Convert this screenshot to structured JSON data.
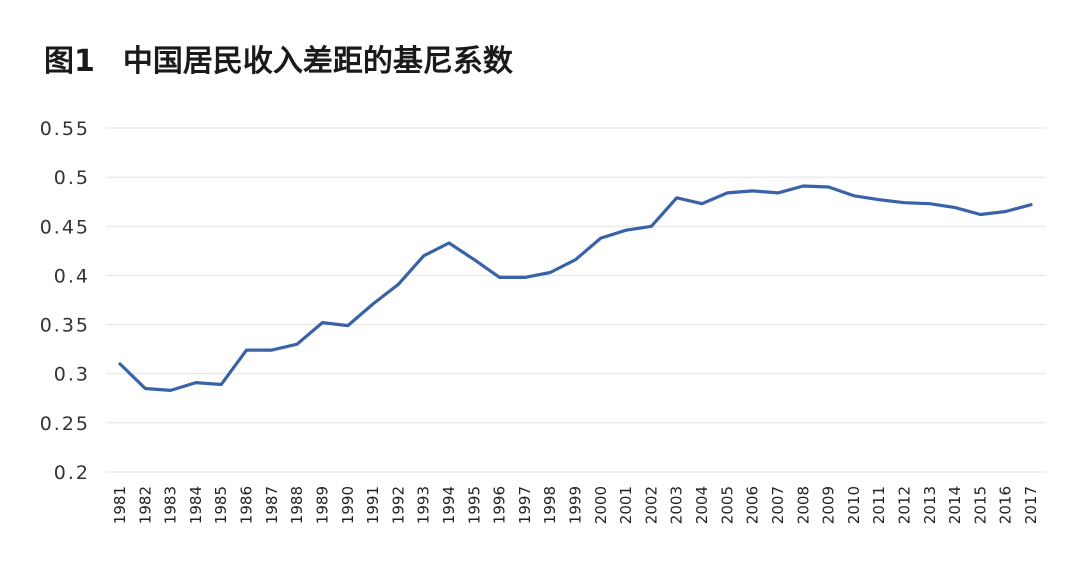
{
  "figure": {
    "label": "图1",
    "title": "中国居民收入差距的基尼系数"
  },
  "chart_data": {
    "type": "line",
    "title": "中国居民收入差距的基尼系数",
    "xlabel": "",
    "ylabel": "",
    "ylim": [
      0.2,
      0.55
    ],
    "yticks": [
      "0.55",
      "0.5",
      "0.45",
      "0.4",
      "0.35",
      "0.3",
      "0.25",
      "0.2"
    ],
    "grid": true,
    "legend": "none",
    "line_color": "#3a62a8",
    "categories": [
      "1981",
      "1982",
      "1983",
      "1984",
      "1985",
      "1986",
      "1987",
      "1988",
      "1989",
      "1990",
      "1991",
      "1992",
      "1993",
      "1994",
      "1995",
      "1996",
      "1997",
      "1998",
      "1999",
      "2000",
      "2001",
      "2002",
      "2003",
      "2004",
      "2005",
      "2006",
      "2007",
      "2008",
      "2009",
      "2010",
      "2011",
      "2012",
      "2013",
      "2014",
      "2015",
      "2016",
      "2017"
    ],
    "series": [
      {
        "values": [
          0.31,
          0.285,
          0.283,
          0.291,
          0.289,
          0.324,
          0.324,
          0.33,
          0.352,
          0.349,
          0.371,
          0.391,
          0.42,
          0.433,
          0.416,
          0.398,
          0.398,
          0.403,
          0.416,
          0.438,
          0.446,
          0.45,
          0.479,
          0.473,
          0.484,
          0.486,
          0.484,
          0.491,
          0.49,
          0.481,
          0.477,
          0.474,
          0.473,
          0.469,
          0.462,
          0.465,
          0.472
        ]
      }
    ]
  }
}
